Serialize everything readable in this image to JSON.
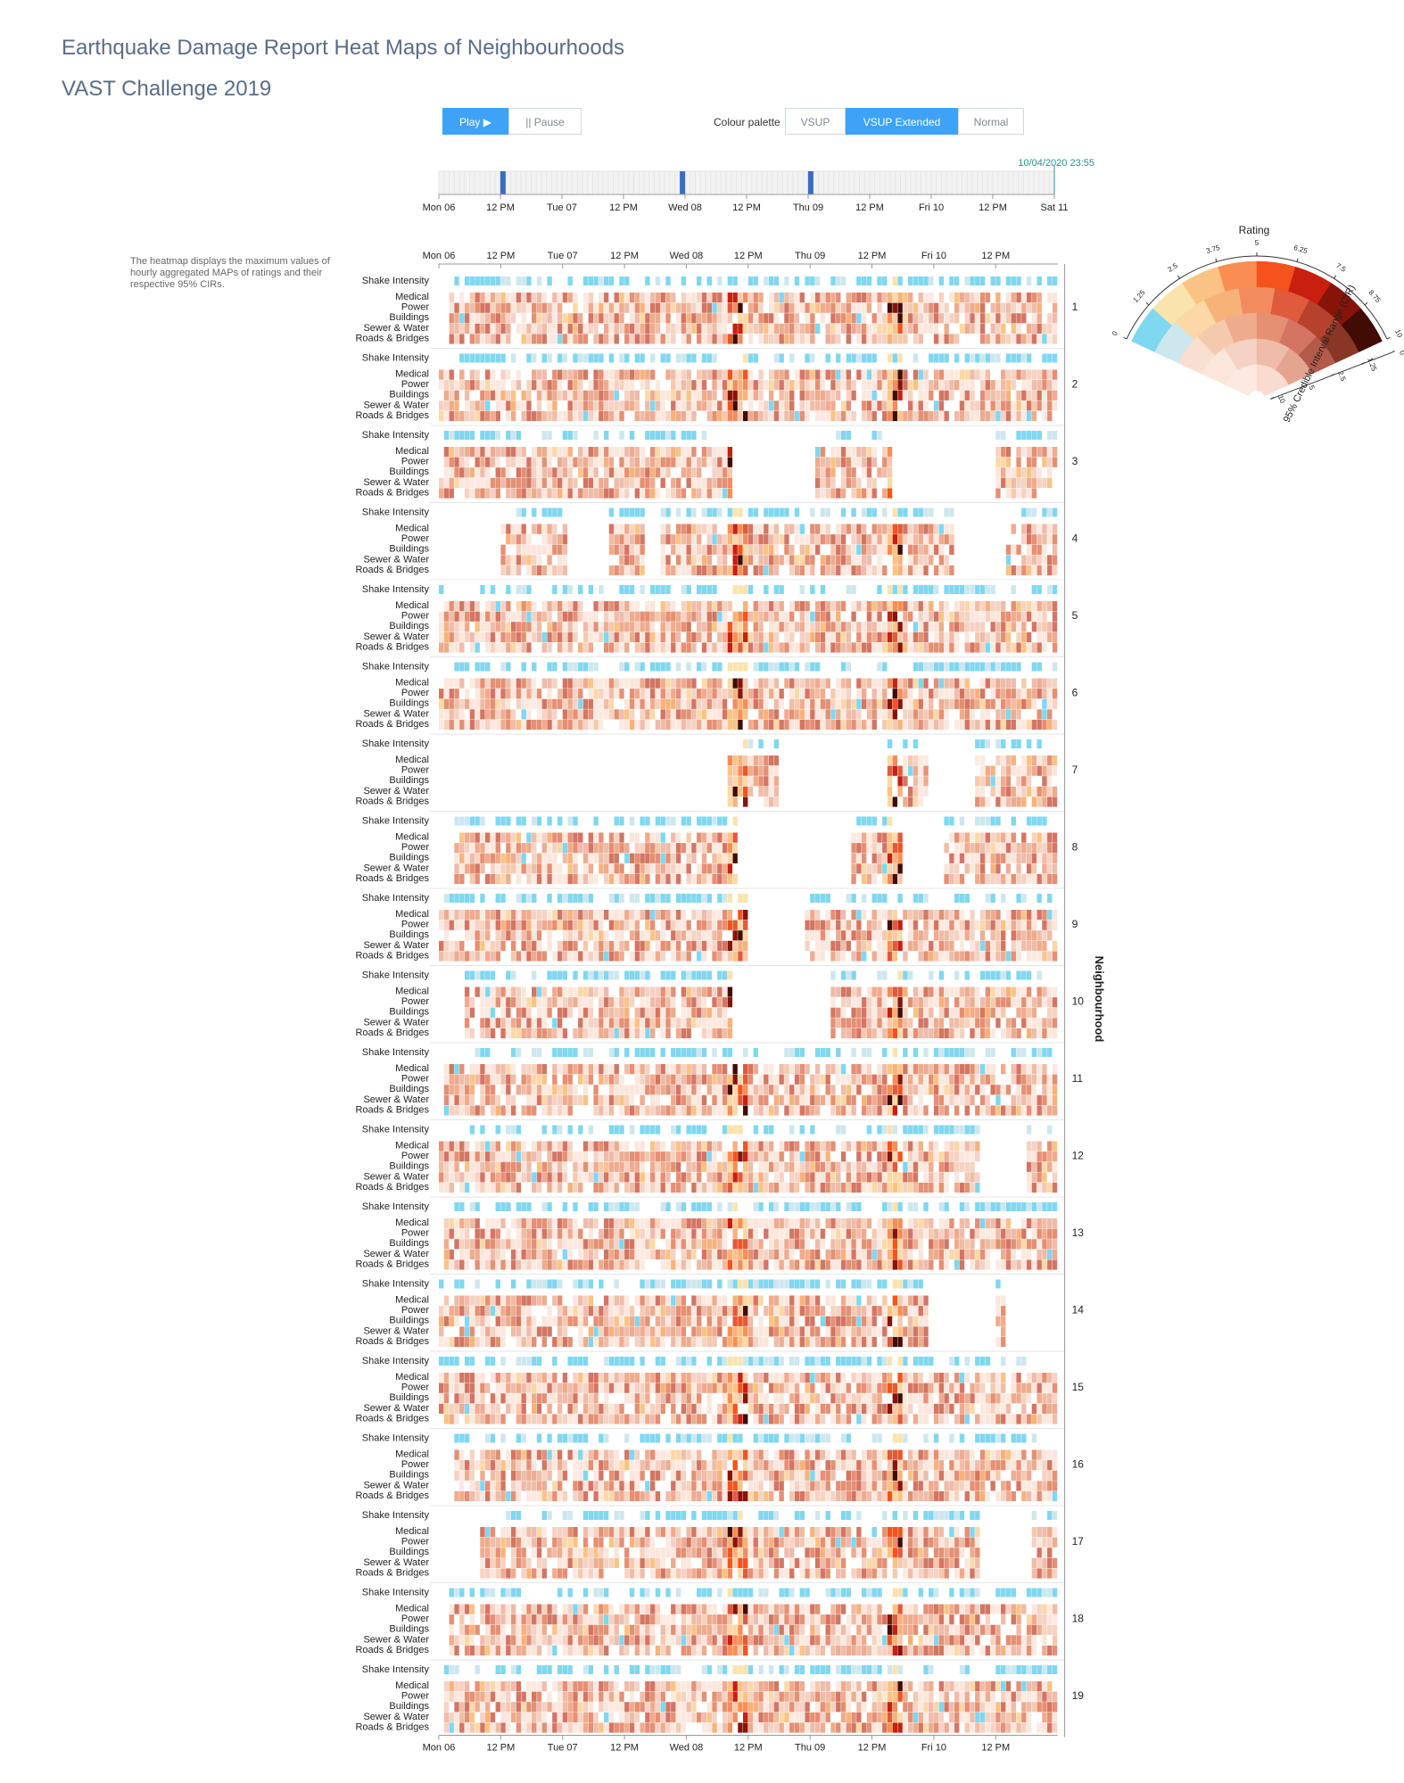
{
  "header": {
    "title": "Earthquake Damage Report Heat Maps of Neighbourhoods",
    "subtitle": "VAST Challenge 2019"
  },
  "controls": {
    "play_label": "Play ▶",
    "pause_label": "|| Pause",
    "palette_label": "Colour palette",
    "palette_options": [
      "VSUP",
      "VSUP Extended",
      "Normal"
    ],
    "palette_selected": "VSUP Extended"
  },
  "timeline": {
    "current_time": "10/04/2020 23:55",
    "ticks": [
      "Mon 06",
      "12 PM",
      "Tue 07",
      "12 PM",
      "Wed 08",
      "12 PM",
      "Thu 09",
      "12 PM",
      "Fri 10",
      "12 PM",
      "Sat 11"
    ],
    "markers_hours": [
      12.5,
      47.5,
      72.5
    ]
  },
  "description": "The heatmap displays the maximum values of hourly aggregated MAPs of ratings and their respective 95% CIRs.",
  "chart_data": {
    "type": "heatmap",
    "x_ticks": [
      "Mon 06",
      "12 PM",
      "Tue 07",
      "12 PM",
      "Wed 08",
      "12 PM",
      "Thu 09",
      "12 PM",
      "Fri 10",
      "12 PM"
    ],
    "bottom_ticks": [
      "Mon 06",
      "12 PM",
      "Tue 07",
      "12 PM",
      "Wed 08",
      "12 PM",
      "Thu 09",
      "12 PM",
      "Fri 10",
      "12 PM"
    ],
    "hours": 120,
    "rows": [
      "Shake Intensity",
      "Medical",
      "Power",
      "Buildings",
      "Sewer & Water",
      "Roads & Bridges"
    ],
    "neighbourhoods": [
      "1",
      "2",
      "3",
      "4",
      "5",
      "6",
      "7",
      "8",
      "9",
      "10",
      "11",
      "12",
      "13",
      "14",
      "15",
      "16",
      "17",
      "18",
      "19"
    ],
    "ylabel": "Neighbourhood",
    "coverage_hours": [
      [
        [
          2,
          120
        ]
      ],
      [
        [
          0,
          120
        ]
      ],
      [
        [
          0,
          57
        ],
        [
          73,
          88
        ],
        [
          108,
          120
        ]
      ],
      [
        [
          12,
          25
        ],
        [
          33,
          40
        ],
        [
          43,
          100
        ],
        [
          110,
          120
        ]
      ],
      [
        [
          0,
          120
        ]
      ],
      [
        [
          0,
          120
        ]
      ],
      [
        [
          56,
          66
        ],
        [
          87,
          95
        ],
        [
          104,
          120
        ]
      ],
      [
        [
          3,
          58
        ],
        [
          80,
          90
        ],
        [
          98,
          120
        ]
      ],
      [
        [
          0,
          60
        ],
        [
          71,
          120
        ]
      ],
      [
        [
          5,
          57
        ],
        [
          76,
          120
        ]
      ],
      [
        [
          1,
          120
        ]
      ],
      [
        [
          0,
          105
        ],
        [
          114,
          120
        ]
      ],
      [
        [
          1,
          120
        ]
      ],
      [
        [
          0,
          95
        ],
        [
          108,
          110
        ]
      ],
      [
        [
          0,
          120
        ]
      ],
      [
        [
          3,
          120
        ]
      ],
      [
        [
          8,
          105
        ],
        [
          115,
          120
        ]
      ],
      [
        [
          2,
          120
        ]
      ],
      [
        [
          1,
          120
        ]
      ]
    ],
    "highlight_hours": [
      [
        56,
        60
      ],
      [
        87,
        90
      ]
    ],
    "legend": {
      "title": "Rating",
      "rating_ticks": [
        "0",
        "1.25",
        "2.5",
        "3.75",
        "5",
        "6.25",
        "7.5",
        "8.75",
        "10"
      ],
      "cir_label": "95% Credible Interval Range (CIR)",
      "cir_ticks": [
        "0",
        "1.25",
        "2.5",
        "5",
        "10"
      ],
      "colors": [
        [
          "#7fd7f0",
          "#fbe3ad",
          "#fbc383",
          "#f98e52",
          "#f4531e",
          "#c81f10",
          "#871409",
          "#420b04"
        ],
        [
          "#cde7ef",
          "#fbd8a6",
          "#f7b27a",
          "#f28c5e",
          "#e05a3c",
          "#b6412c",
          "#8a3625"
        ],
        [
          "#f8dfcf",
          "#f5c9ad",
          "#efab8e",
          "#e58f73",
          "#d47563",
          "#b35a4b"
        ],
        [
          "#fbe6dc",
          "#f6d2c3",
          "#efbca9",
          "#e4a590"
        ],
        [
          "#fde9e0",
          "#f9dbcf"
        ]
      ]
    }
  }
}
